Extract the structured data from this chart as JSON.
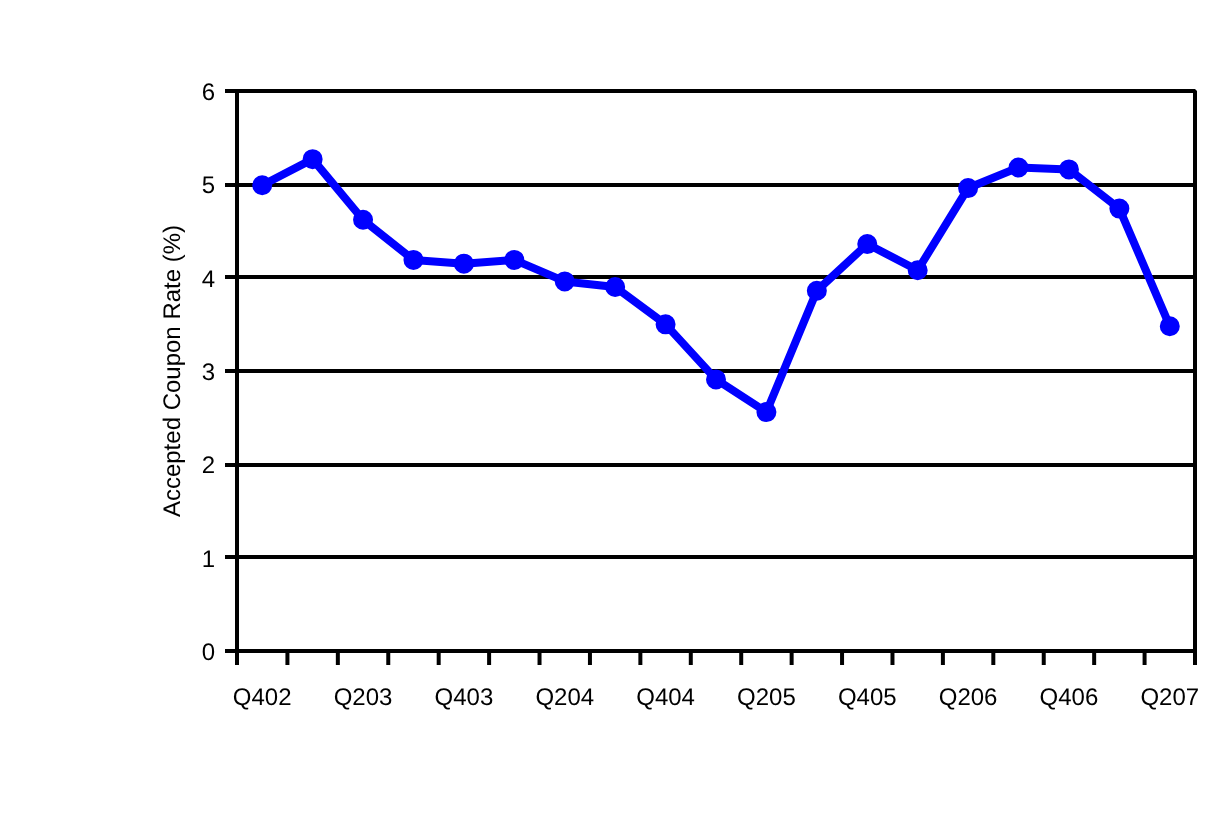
{
  "chart_data": {
    "type": "line",
    "ylabel": "Accepted Coupon Rate (%)",
    "categories": [
      "Q402",
      null,
      "Q203",
      null,
      "Q403",
      null,
      "Q204",
      null,
      "Q404",
      null,
      "Q205",
      null,
      "Q405",
      null,
      "Q206",
      null,
      "Q406",
      null,
      "Q207"
    ],
    "series": [
      {
        "color": "#0000ff",
        "values": [
          4.99,
          5.27,
          4.62,
          4.19,
          4.15,
          4.19,
          3.96,
          3.9,
          3.5,
          2.91,
          2.56,
          3.86,
          4.36,
          4.08,
          4.96,
          5.18,
          5.16,
          4.74,
          3.48
        ]
      }
    ],
    "ylim": [
      0,
      6
    ],
    "yticks": [
      0,
      1,
      2,
      3,
      4,
      5,
      6
    ],
    "grid": "y",
    "marker": "circle",
    "line_style": "solid"
  }
}
